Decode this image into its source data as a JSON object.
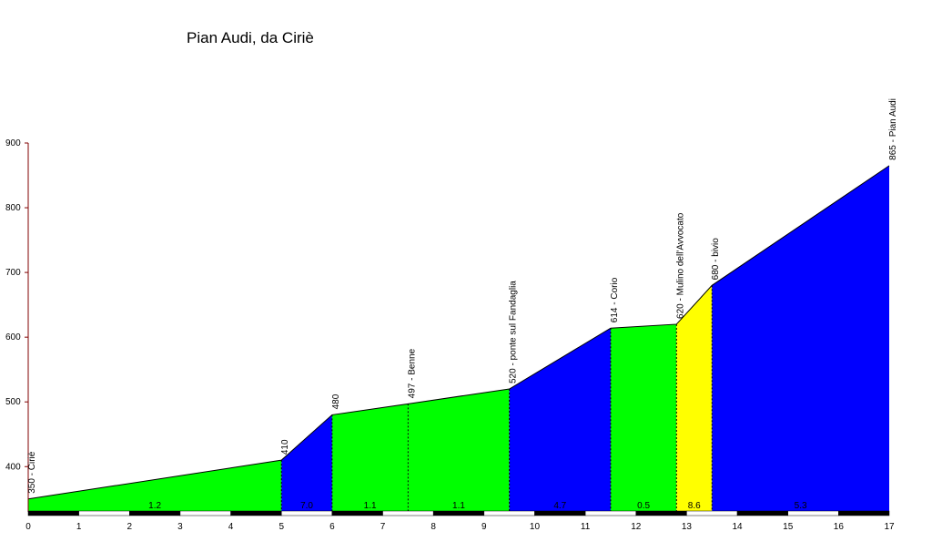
{
  "chart_data": {
    "type": "area",
    "title": "Pian Audi, da Ciriè",
    "xlabel": "",
    "ylabel": "",
    "xlim": [
      0,
      17
    ],
    "ylim": [
      330,
      900
    ],
    "x_ticks": [
      0,
      1,
      2,
      3,
      4,
      5,
      6,
      7,
      8,
      9,
      10,
      11,
      12,
      13,
      14,
      15,
      16,
      17
    ],
    "y_ticks": [
      400,
      500,
      600,
      700,
      800,
      900
    ],
    "profile": [
      {
        "x": 0,
        "y": 350
      },
      {
        "x": 5,
        "y": 410
      },
      {
        "x": 6,
        "y": 480
      },
      {
        "x": 7.5,
        "y": 497
      },
      {
        "x": 9.5,
        "y": 520
      },
      {
        "x": 11.5,
        "y": 614
      },
      {
        "x": 12.8,
        "y": 620
      },
      {
        "x": 13.5,
        "y": 680
      },
      {
        "x": 17,
        "y": 865
      }
    ],
    "segments": [
      {
        "from": 0,
        "to": 5,
        "color": "#00ff00",
        "gradient": "1.2"
      },
      {
        "from": 5,
        "to": 6,
        "color": "#0000ff",
        "gradient": "7.0"
      },
      {
        "from": 6,
        "to": 7.5,
        "color": "#00ff00",
        "gradient": "1.1"
      },
      {
        "from": 7.5,
        "to": 9.5,
        "color": "#00ff00",
        "gradient": "1.1"
      },
      {
        "from": 9.5,
        "to": 11.5,
        "color": "#0000ff",
        "gradient": "4.7"
      },
      {
        "from": 11.5,
        "to": 12.8,
        "color": "#00ff00",
        "gradient": "0.5"
      },
      {
        "from": 12.8,
        "to": 13.5,
        "color": "#ffff00",
        "gradient": "8.6"
      },
      {
        "from": 13.5,
        "to": 17,
        "color": "#0000ff",
        "gradient": "5.3"
      }
    ],
    "waypoints": [
      {
        "x": 0,
        "y": 350,
        "label": "350 - Ciriè"
      },
      {
        "x": 5,
        "y": 410,
        "label": "410"
      },
      {
        "x": 6,
        "y": 480,
        "label": "480"
      },
      {
        "x": 7.5,
        "y": 497,
        "label": "497 - Benne"
      },
      {
        "x": 9.5,
        "y": 520,
        "label": "520 - ponte sul Fandaglia"
      },
      {
        "x": 11.5,
        "y": 614,
        "label": "614 - Corio"
      },
      {
        "x": 12.8,
        "y": 620,
        "label": "620 - Mulino dell'Avvocato"
      },
      {
        "x": 13.5,
        "y": 680,
        "label": "680 - bivio"
      },
      {
        "x": 17,
        "y": 865,
        "label": "865 - Pian Audi"
      }
    ],
    "grid": false,
    "legend": "none"
  }
}
